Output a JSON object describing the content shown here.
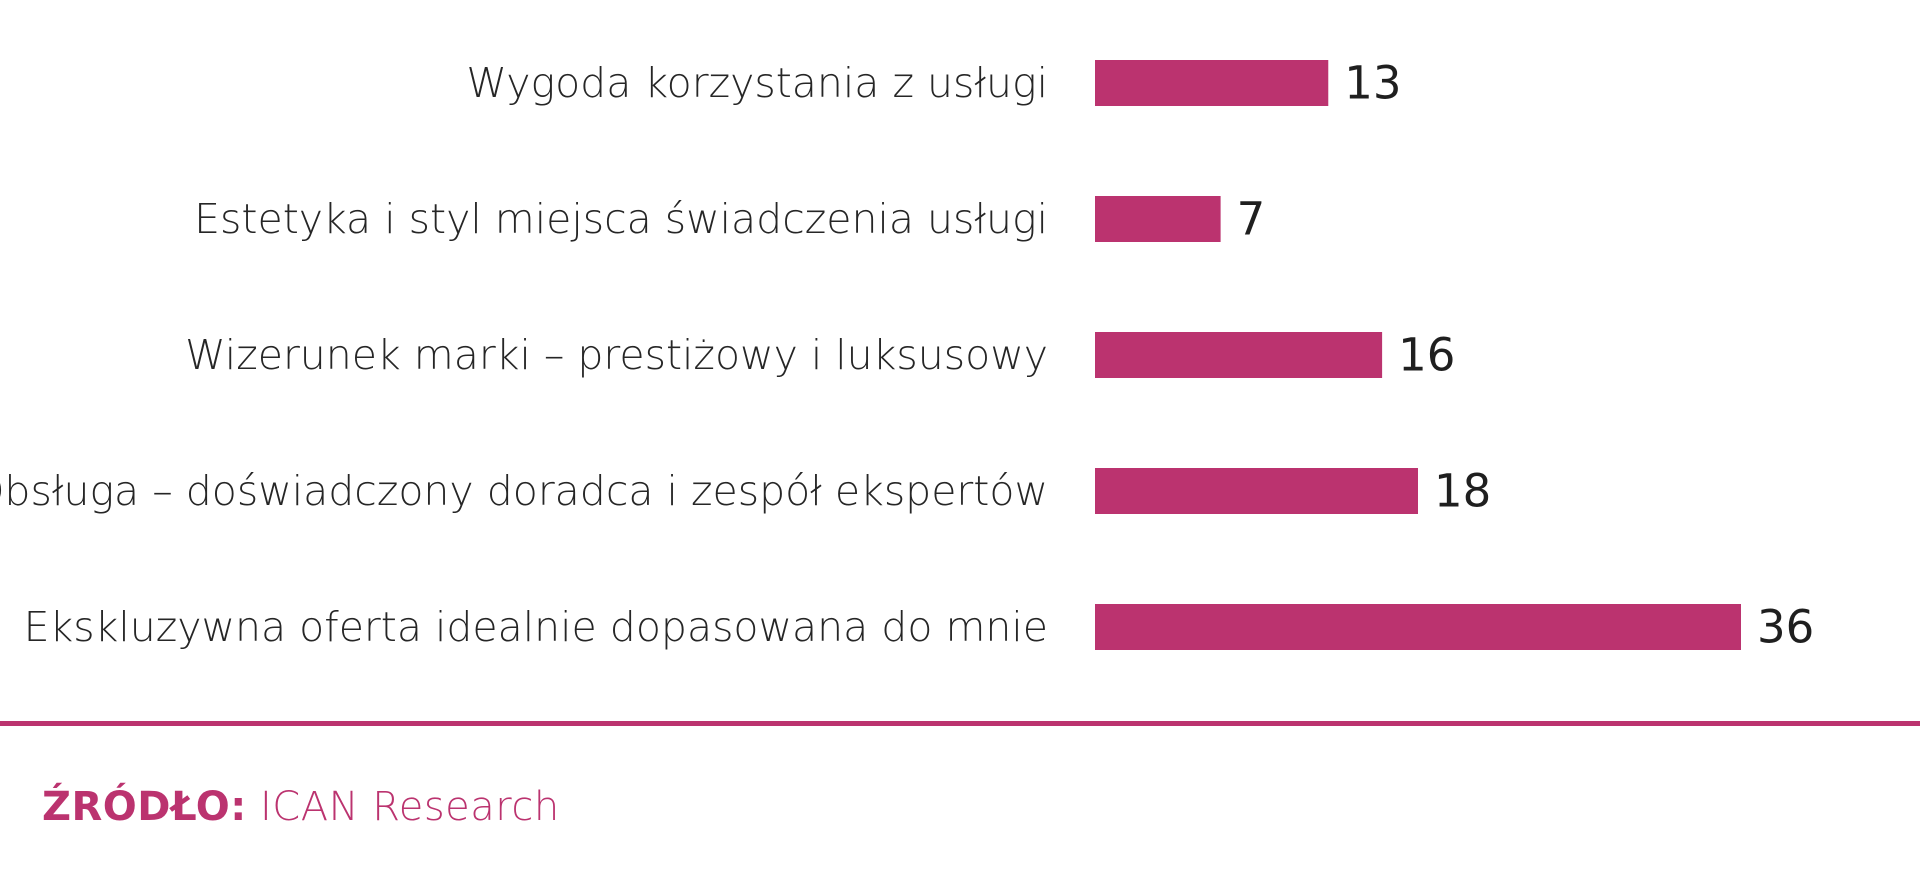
{
  "colors": {
    "accent": "#bb336f",
    "text": "#262626",
    "background": "#ffffff"
  },
  "source": {
    "prefix": "ŹRÓDŁO:",
    "text": "ICAN Research"
  },
  "chart_data": {
    "type": "bar",
    "orientation": "horizontal",
    "categories": [
      "Wygoda korzystania z usługi",
      "Estetyka i styl miejsca świadczenia usługi",
      "Wizerunek marki – prestiżowy i luksusowy",
      "Obsługa – doświadczony doradca i zespół ekspertów",
      "Ekskluzywna oferta idealnie dopasowana do mnie"
    ],
    "values": [
      13,
      7,
      16,
      18,
      36
    ],
    "value_labels": [
      "13",
      "7",
      "16",
      "18",
      "36"
    ],
    "xlim": [
      0,
      36
    ],
    "grid": false,
    "legend": "none"
  }
}
